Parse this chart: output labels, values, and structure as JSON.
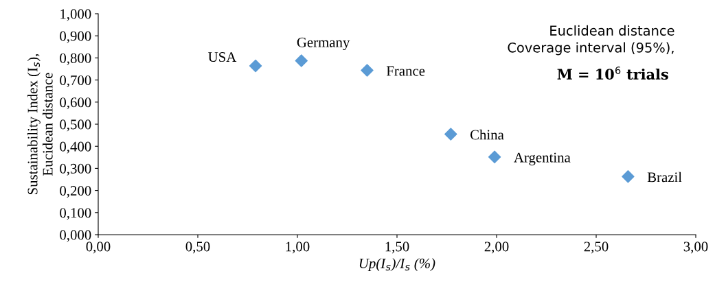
{
  "chart_data": {
    "type": "scatter",
    "xlabel": "Up(I$_{s}$)/I$_{s}$ (%)",
    "ylabel": "Sustainability Index (I$_{s}$),\nEucidean distance",
    "x": [
      0.79,
      1.02,
      1.35,
      1.77,
      1.99,
      2.66
    ],
    "series": [
      {
        "color": "#5b9bd5",
        "values": [
          0.764,
          0.787,
          0.744,
          0.455,
          0.352,
          0.263
        ]
      }
    ],
    "marker": "diamond",
    "grid": false,
    "legend": false,
    "xlim": [
      0,
      3
    ],
    "ylim": [
      0,
      1
    ],
    "xticks": [
      {
        "value": 0,
        "label": "0,00"
      },
      {
        "value": 0.5,
        "label": "0,50"
      },
      {
        "value": 1,
        "label": "1,00"
      },
      {
        "value": 1.5,
        "label": "1,50"
      },
      {
        "value": 2,
        "label": "2,00"
      },
      {
        "value": 2.5,
        "label": "2,50"
      },
      {
        "value": 3,
        "label": "3,00"
      }
    ],
    "yticks": [
      {
        "value": 0,
        "label": "0,000"
      },
      {
        "value": 0.1,
        "label": "0,100"
      },
      {
        "value": 0.2,
        "label": "0,200"
      },
      {
        "value": 0.3,
        "label": "0,300"
      },
      {
        "value": 0.4,
        "label": "0,400"
      },
      {
        "value": 0.5,
        "label": "0,500"
      },
      {
        "value": 0.6,
        "label": "0,600"
      },
      {
        "value": 0.7,
        "label": "0,700"
      },
      {
        "value": 0.8,
        "label": "0,800"
      },
      {
        "value": 0.9,
        "label": "0,900"
      },
      {
        "value": 1,
        "label": "1,000"
      }
    ],
    "annotations": [
      {
        "text": "USA",
        "x": 0.79,
        "y": 0.764
      },
      {
        "text": "Germany",
        "x": 1.02,
        "y": 0.787
      },
      {
        "text": "France",
        "x": 1.35,
        "y": 0.744
      },
      {
        "text": "China",
        "x": 1.77,
        "y": 0.455
      },
      {
        "text": "Argentina",
        "x": 1.99,
        "y": 0.352
      },
      {
        "text": "Brazil",
        "x": 2.66,
        "y": 0.263
      },
      "Euclidean distance\nCoverage interval (95%),",
      "M = 10$^{6}$ trials"
    ]
  }
}
